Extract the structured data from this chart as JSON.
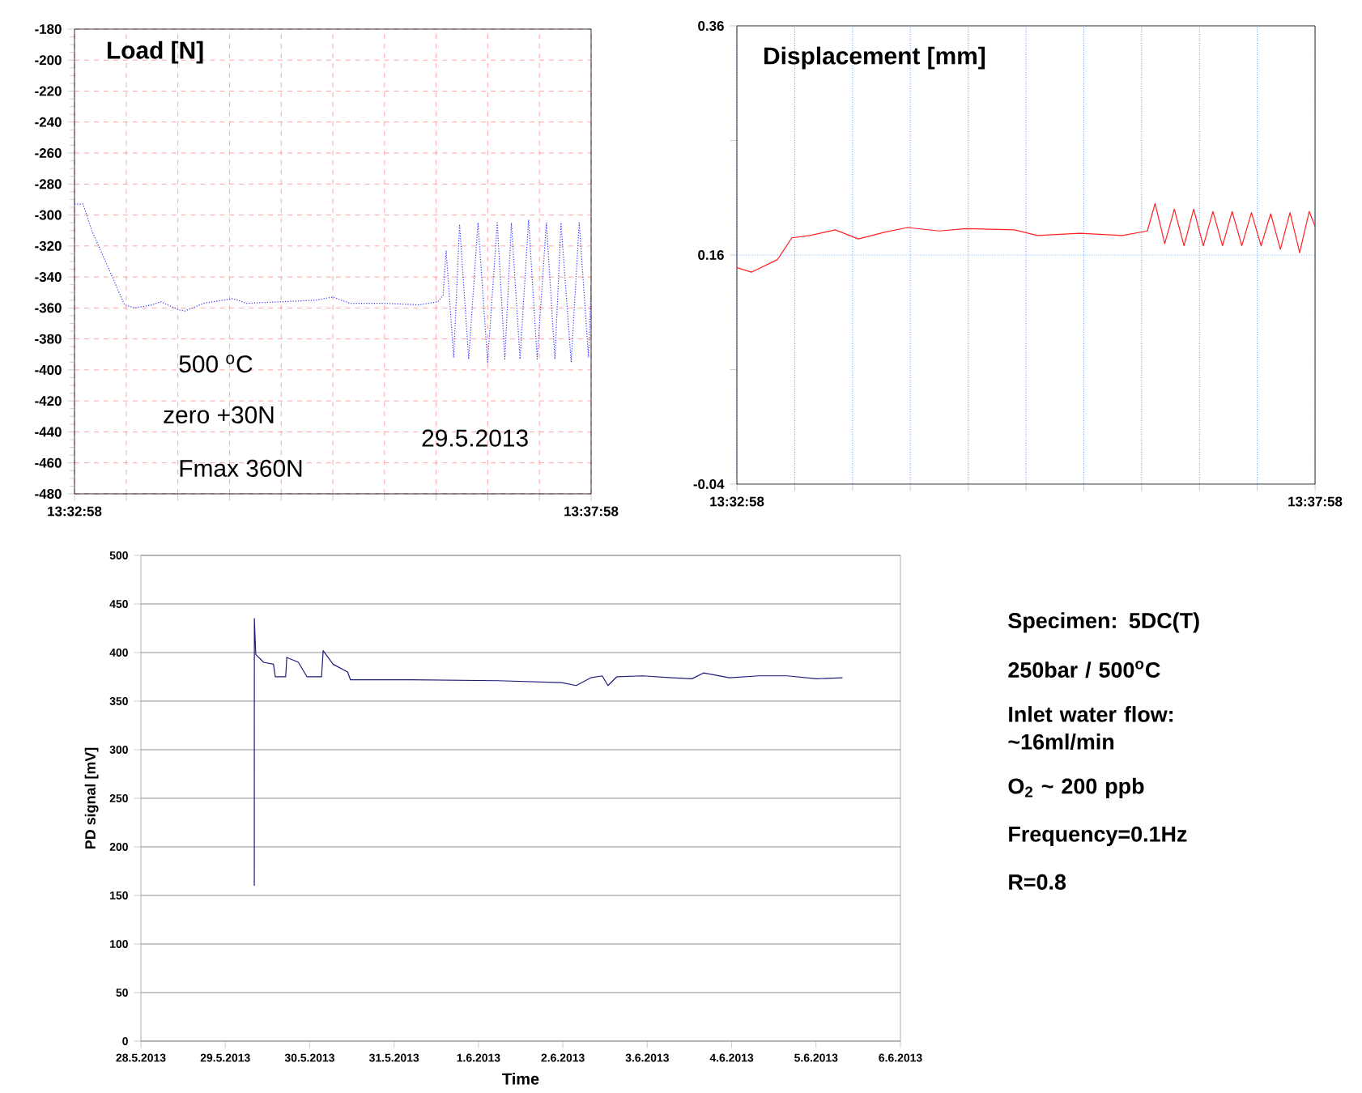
{
  "chart_data": [
    {
      "type": "line",
      "title": "Load [N]",
      "annotations": [
        "500 $^{o}$C",
        "zero +30N",
        "Fmax 360N",
        "29.5.2013"
      ],
      "x": [
        13.54944,
        13.55083,
        13.55222,
        13.555,
        13.5575,
        13.55917,
        13.56194,
        13.56333,
        13.56611,
        13.56722,
        13.57028,
        13.575,
        13.57722,
        13.58278,
        13.58833,
        13.59111,
        13.59389,
        13.59944,
        13.605,
        13.60806,
        13.60889,
        13.60939,
        13.61061,
        13.61156,
        13.61303,
        13.61453,
        13.61608,
        13.61764,
        13.61886,
        13.61992,
        13.62131,
        13.62269,
        13.62408,
        13.62556,
        13.62694,
        13.62792,
        13.62956,
        13.63086,
        13.63236,
        13.63278
      ],
      "values": [
        -293,
        -293,
        -310,
        -335,
        -358,
        -360,
        -358,
        -356,
        -361,
        -362,
        -357,
        -354,
        -357,
        -356,
        -355,
        -353,
        -357,
        -357,
        -358,
        -356,
        -352,
        -323,
        -392,
        -306,
        -393,
        -305,
        -395,
        -305,
        -393,
        -305,
        -393,
        -303,
        -393,
        -305,
        -393,
        -305,
        -395,
        -305,
        -392,
        -345
      ],
      "color": "#3333ff",
      "line_style": "dotted",
      "marker": "none",
      "grid": true,
      "xlim": [
        13.54944,
        13.63278
      ],
      "xticks": [
        {
          "value": 13.54944,
          "label": "13:32:58"
        },
        {
          "value": 13.55778,
          "label": null
        },
        {
          "value": 13.56611,
          "label": null
        },
        {
          "value": 13.57444,
          "label": null
        },
        {
          "value": 13.58278,
          "label": null
        },
        {
          "value": 13.59111,
          "label": null
        },
        {
          "value": 13.59944,
          "label": null
        },
        {
          "value": 13.60778,
          "label": null
        },
        {
          "value": 13.61611,
          "label": null
        },
        {
          "value": 13.62444,
          "label": null
        },
        {
          "value": 13.63278,
          "label": "13:37:58"
        }
      ],
      "ylim": [
        -480,
        -180
      ],
      "yticks": [
        -480,
        -460,
        -440,
        -420,
        -400,
        -380,
        -360,
        -340,
        -320,
        -300,
        -280,
        -260,
        -240,
        -220,
        -200,
        -180
      ]
    },
    {
      "type": "line",
      "title": "Displacement [mm]",
      "x": [
        13.54944,
        13.55153,
        13.55528,
        13.55736,
        13.56,
        13.56361,
        13.56694,
        13.57083,
        13.57403,
        13.57861,
        13.5825,
        13.58944,
        13.59278,
        13.59889,
        13.605,
        13.60861,
        13.60972,
        13.61111,
        13.6125,
        13.61389,
        13.61528,
        13.61667,
        13.61806,
        13.61944,
        13.62083,
        13.62222,
        13.62361,
        13.625,
        13.62639,
        13.62778,
        13.62917,
        13.63056,
        13.63194,
        13.63278
      ],
      "values": [
        0.149,
        0.145,
        0.156,
        0.175,
        0.177,
        0.182,
        0.174,
        0.18,
        0.184,
        0.181,
        0.183,
        0.182,
        0.177,
        0.179,
        0.177,
        0.181,
        0.205,
        0.17,
        0.2,
        0.168,
        0.2,
        0.168,
        0.198,
        0.168,
        0.198,
        0.168,
        0.197,
        0.168,
        0.196,
        0.165,
        0.197,
        0.162,
        0.198,
        0.185
      ],
      "color": "#ff2020",
      "line_style": "solid",
      "marker": "none",
      "grid": "x",
      "ref_lines": [
        {
          "axis": "y",
          "value": 0.16,
          "color": "#3399ff",
          "line_style": "dotted"
        }
      ],
      "xlim": [
        13.54944,
        13.63278
      ],
      "xticks": [
        {
          "value": 13.54944,
          "label": "13:32:58"
        },
        {
          "value": 13.55778,
          "label": null
        },
        {
          "value": 13.56611,
          "label": null
        },
        {
          "value": 13.57444,
          "label": null
        },
        {
          "value": 13.58278,
          "label": null
        },
        {
          "value": 13.59111,
          "label": null
        },
        {
          "value": 13.59944,
          "label": null
        },
        {
          "value": 13.60778,
          "label": null
        },
        {
          "value": 13.61611,
          "label": null
        },
        {
          "value": 13.62444,
          "label": null
        },
        {
          "value": 13.63278,
          "label": "13:37:58"
        }
      ],
      "ylim": [
        -0.04,
        0.36
      ],
      "yticks": [
        -0.04,
        {
          "value": 0.06,
          "label": null
        },
        0.16,
        {
          "value": 0.26,
          "label": null
        },
        0.36
      ]
    },
    {
      "type": "line",
      "xlabel": "Time",
      "ylabel": "PD signal [mV]",
      "x": [
        "2013-05-29T08:15",
        "2013-05-29T08:16",
        "2013-05-29T08:40",
        "2013-05-29T10:54",
        "2013-05-29T13:42",
        "2013-05-29T14:13",
        "2013-05-29T17:10",
        "2013-05-29T17:29",
        "2013-05-29T20:47",
        "2013-05-29T23:14",
        "2013-05-30T03:22",
        "2013-05-30T03:50",
        "2013-05-30T06:39",
        "2013-05-30T10:47",
        "2013-05-30T11:35",
        "2013-05-31T04:52",
        "2013-06-01T05:34",
        "2013-06-01T23:40",
        "2013-06-02T03:48",
        "2013-06-02T07:54",
        "2013-06-02T11:11",
        "2013-06-02T12:50",
        "2013-06-02T15:19",
        "2013-06-02T22:44",
        "2013-06-03T06:56",
        "2013-06-03T12:42",
        "2013-06-03T16:00",
        "2013-06-03T23:24",
        "2013-06-04T07:38",
        "2013-06-04T15:52",
        "2013-06-05T00:06",
        "2013-06-05T07:31"
      ],
      "values": [
        160,
        435,
        398,
        390,
        388,
        375,
        375,
        395,
        390,
        375,
        375,
        402,
        388,
        380,
        372,
        372,
        371,
        369,
        366,
        374,
        376,
        366,
        375,
        376,
        374,
        373,
        379,
        374,
        376,
        376,
        373,
        374
      ],
      "color": "#1c1c7a",
      "line_style": "solid",
      "marker": "none",
      "grid": "y",
      "xlim": [
        "2013-05-28",
        "2013-06-06"
      ],
      "xticks": [
        {
          "value": "2013-05-28",
          "label": "28.5.2013"
        },
        {
          "value": "2013-05-29",
          "label": "29.5.2013"
        },
        {
          "value": "2013-05-30",
          "label": "30.5.2013"
        },
        {
          "value": "2013-05-31",
          "label": "31.5.2013"
        },
        {
          "value": "2013-06-01",
          "label": "1.6.2013"
        },
        {
          "value": "2013-06-02",
          "label": "2.6.2013"
        },
        {
          "value": "2013-06-03",
          "label": "3.6.2013"
        },
        {
          "value": "2013-06-04",
          "label": "4.6.2013"
        },
        {
          "value": "2013-06-05",
          "label": "5.6.2013"
        },
        {
          "value": "2013-06-06",
          "label": "6.6.2013"
        }
      ],
      "ylim": [
        0,
        500
      ],
      "yticks": [
        0,
        50,
        100,
        150,
        200,
        250,
        300,
        350,
        400,
        450,
        500
      ]
    },
    {
      "type": "other",
      "annotations": [
        "Specimen: 5DC(T)",
        "250bar / 500$^{o}$C",
        "Inlet water flow: ~16ml/min",
        "O$_{2}$ ~ 200 ppb",
        "Frequency=0.1Hz",
        "R=0.8"
      ]
    }
  ]
}
